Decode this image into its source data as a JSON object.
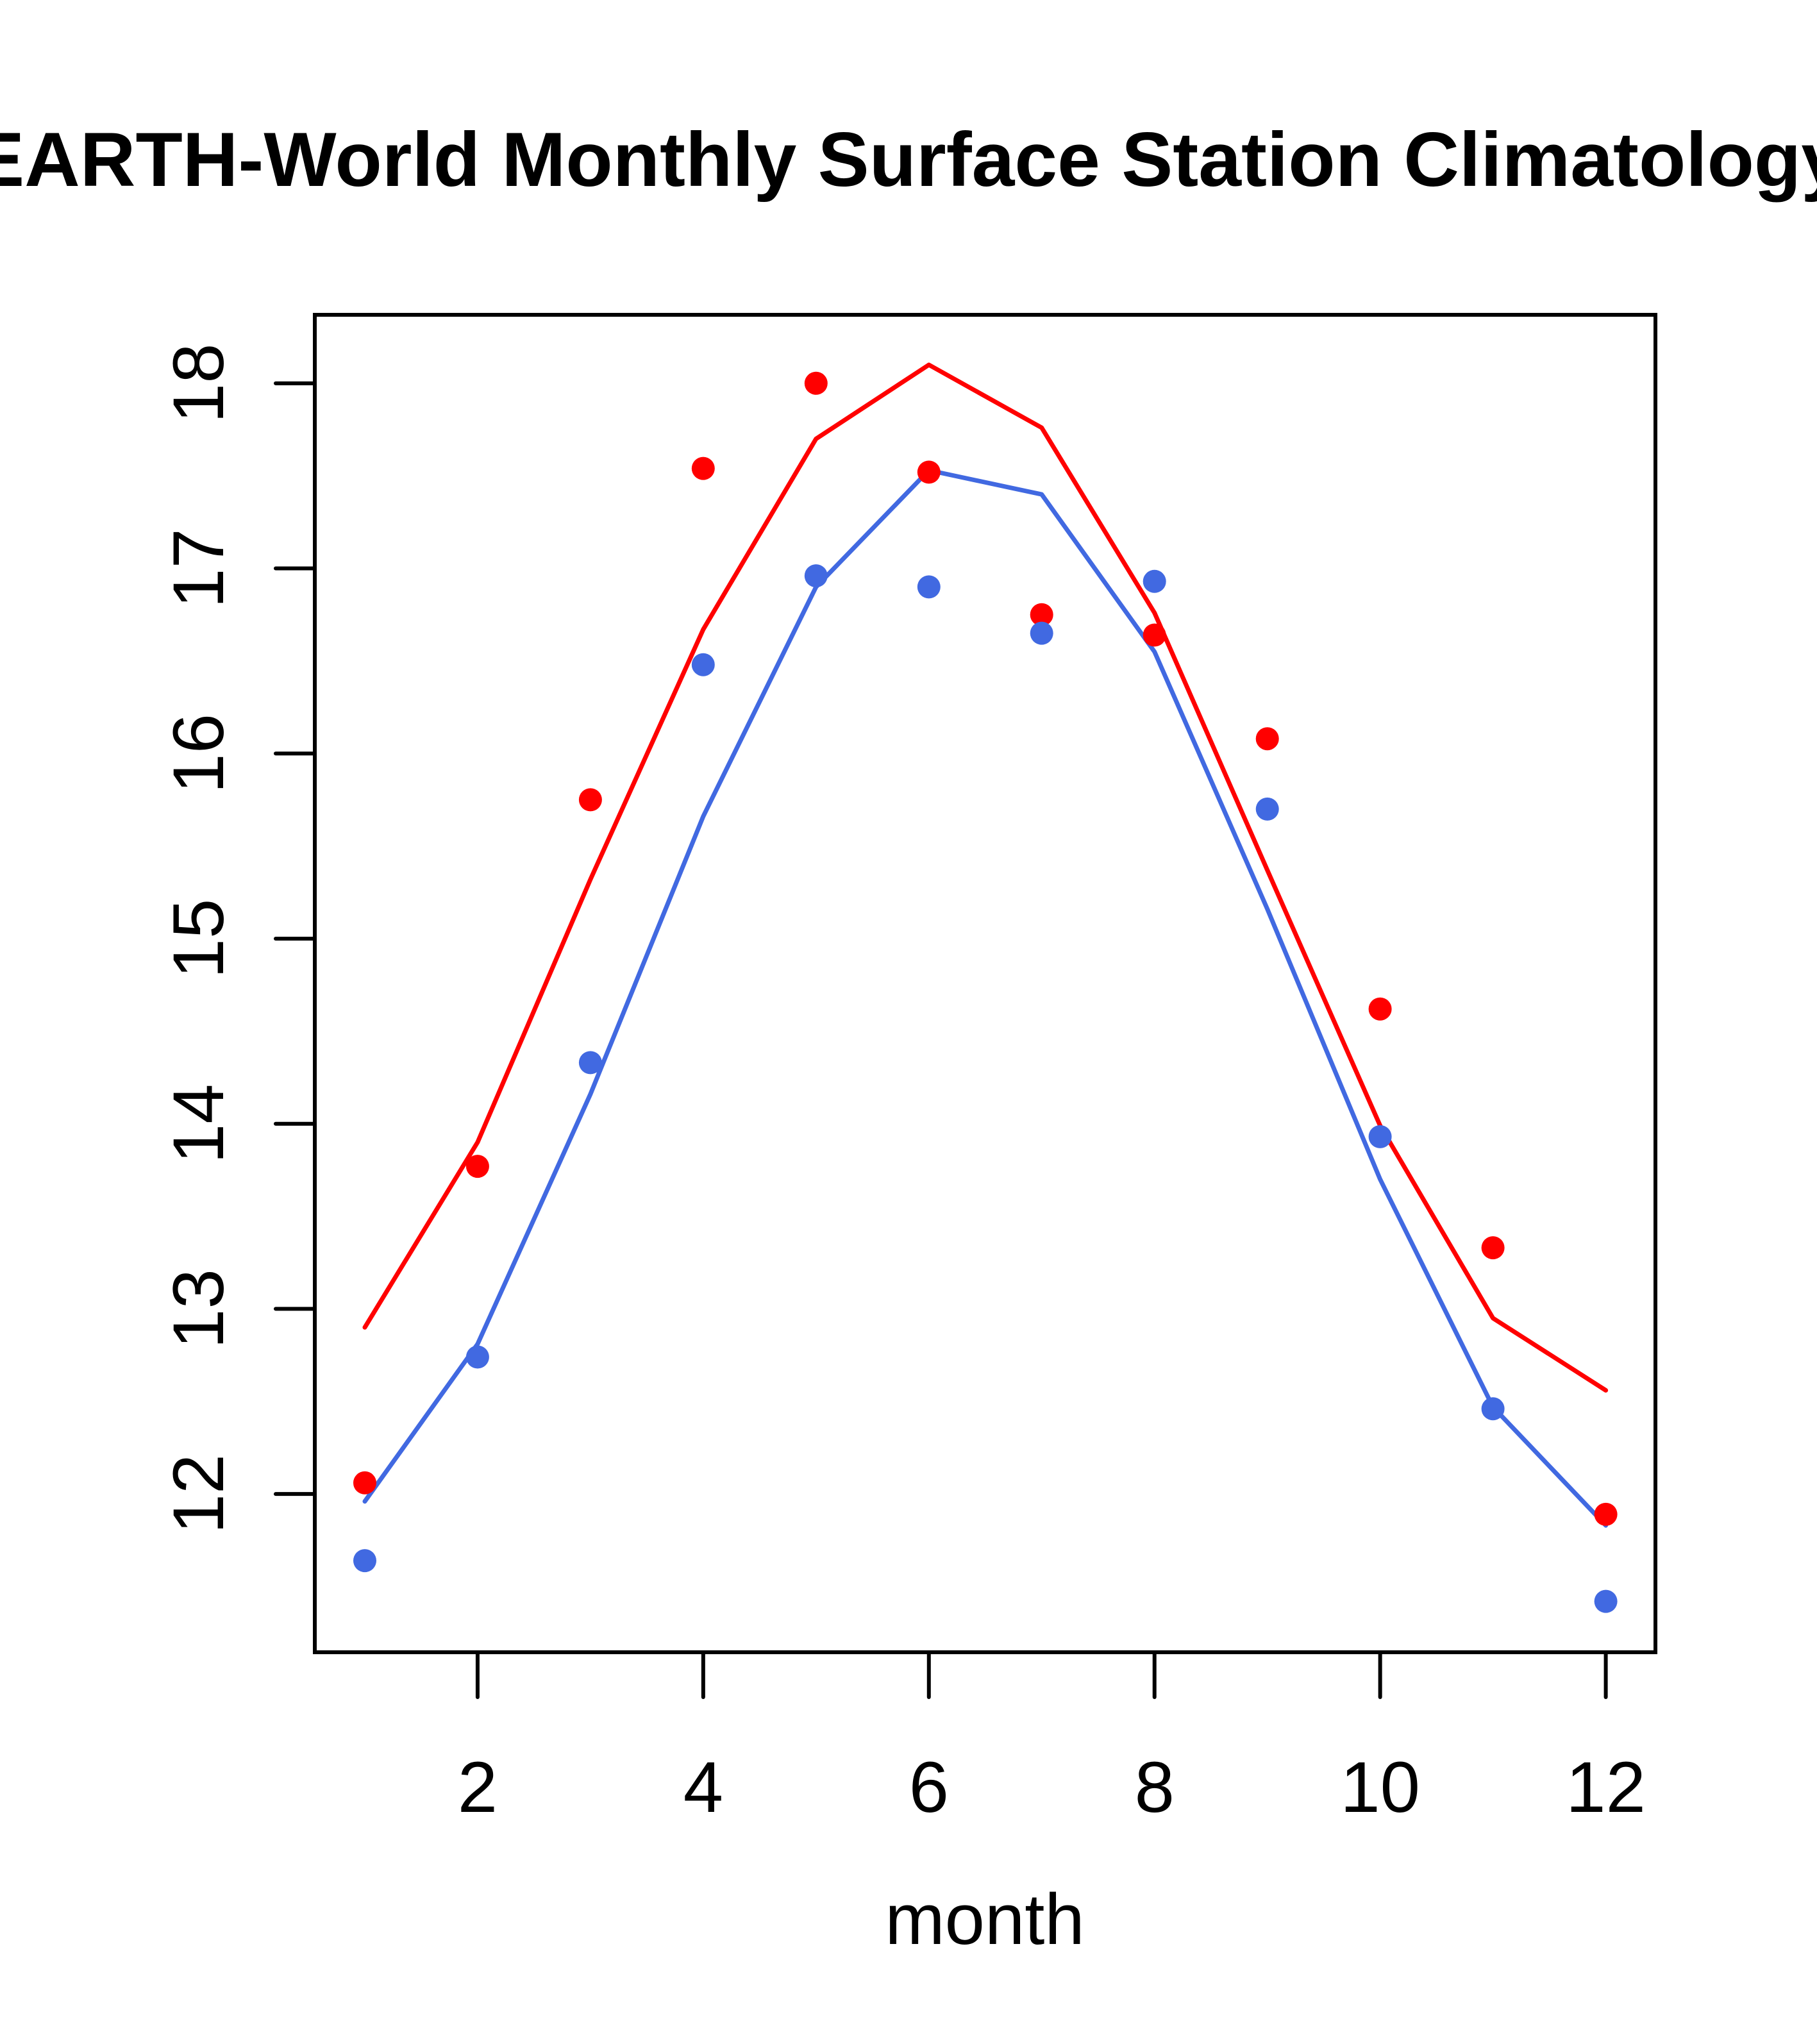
{
  "chart_data": {
    "type": "line",
    "title": "EARTH-World Monthly Surface Station Climatology",
    "xlabel": "month",
    "ylabel": "",
    "xlim": [
      0.557,
      12.44
    ],
    "ylim": [
      11.145,
      18.37
    ],
    "xticks": [
      2,
      4,
      6,
      8,
      10,
      12
    ],
    "xtick_labels": [
      "2",
      "4",
      "6",
      "8",
      "10",
      "12"
    ],
    "yticks": [
      12,
      13,
      14,
      15,
      16,
      17,
      18
    ],
    "ytick_labels": [
      "12",
      "13",
      "14",
      "15",
      "16",
      "17",
      "18"
    ],
    "grid": false,
    "legend": null,
    "x": [
      1,
      2,
      3,
      4,
      5,
      6,
      7,
      8,
      9,
      10,
      11,
      12
    ],
    "series": [
      {
        "name": "red-points",
        "kind": "scatter",
        "color": "#ff0000",
        "values": [
          12.06,
          13.77,
          15.75,
          17.54,
          18.0,
          17.52,
          16.75,
          16.64,
          16.08,
          14.62,
          13.33,
          11.89
        ]
      },
      {
        "name": "red-line",
        "kind": "line",
        "color": "#ff0000",
        "values": [
          12.9,
          13.9,
          15.32,
          16.67,
          17.7,
          18.1,
          17.76,
          16.76,
          15.37,
          13.99,
          12.95,
          12.56
        ]
      },
      {
        "name": "blue-points",
        "kind": "scatter",
        "color": "#4169e1",
        "values": [
          11.64,
          12.74,
          14.33,
          16.48,
          16.96,
          16.9,
          16.65,
          16.93,
          15.7,
          13.93,
          12.46,
          11.42
        ]
      },
      {
        "name": "blue-line",
        "kind": "line",
        "color": "#4169e1",
        "values": [
          11.96,
          12.81,
          14.16,
          15.66,
          16.9,
          17.53,
          17.4,
          16.55,
          15.16,
          13.7,
          12.47,
          11.83
        ]
      }
    ]
  }
}
